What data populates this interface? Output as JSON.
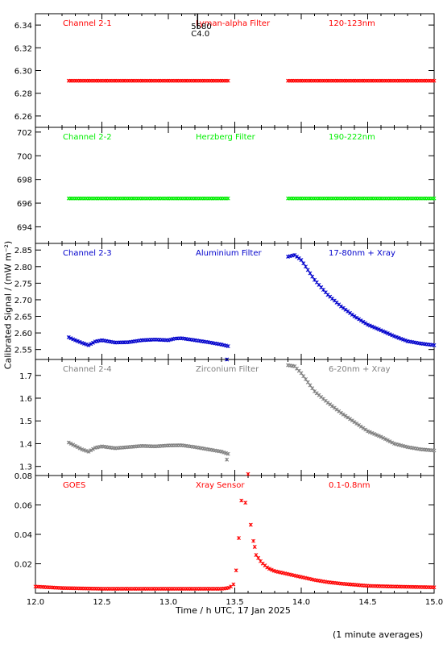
{
  "figure": {
    "x_axis_label": "Time / h UTC, 17 Jan 2025",
    "y_axis_label": "Calibrated Signal / (mW m⁻²)",
    "footnote": "(1 minute averages)",
    "event_marker": {
      "x": 13.22,
      "label_top": "5580",
      "label_bottom": "C4.0"
    }
  },
  "chart_data": [
    {
      "type": "scatter",
      "panel_id": "ch2-1",
      "color": "#ff0000",
      "labels": [
        "Channel 2-1",
        "Lyman-alpha Filter",
        "120-123nm"
      ],
      "ylim": [
        6.25,
        6.35
      ],
      "yticks": [
        6.26,
        6.28,
        6.3,
        6.32,
        6.34
      ],
      "ytick_labels": [
        "6.26",
        "6.28",
        "6.30",
        "6.32",
        "6.34"
      ],
      "segments": [
        {
          "x": [
            12.25,
            13.45
          ],
          "y": [
            6.291,
            6.291
          ]
        },
        {
          "x": [
            13.9,
            15.0
          ],
          "y": [
            6.291,
            6.291
          ]
        }
      ]
    },
    {
      "type": "scatter",
      "panel_id": "ch2-2",
      "color": "#00ee00",
      "labels": [
        "Channel 2-2",
        "Herzberg Filter",
        "190-222nm"
      ],
      "ylim": [
        692.6,
        702.4
      ],
      "yticks": [
        694,
        696,
        698,
        700,
        702
      ],
      "ytick_labels": [
        "694",
        "696",
        "698",
        "700",
        "702"
      ],
      "segments": [
        {
          "x": [
            12.25,
            13.45
          ],
          "y": [
            696.4,
            696.4
          ]
        },
        {
          "x": [
            13.9,
            15.0
          ],
          "y": [
            696.4,
            696.4
          ]
        }
      ]
    },
    {
      "type": "scatter",
      "panel_id": "ch2-3",
      "color": "#0000cc",
      "labels": [
        "Channel 2-3",
        "Aluminium Filter",
        "17-80nm + Xray"
      ],
      "ylim": [
        2.52,
        2.87
      ],
      "yticks": [
        2.55,
        2.6,
        2.65,
        2.7,
        2.75,
        2.8,
        2.85
      ],
      "ytick_labels": [
        "2.55",
        "2.60",
        "2.65",
        "2.70",
        "2.75",
        "2.80",
        "2.85"
      ],
      "segments": [
        {
          "x": [
            12.25,
            12.3,
            12.35,
            12.4,
            12.45,
            12.5,
            12.6,
            12.7,
            12.8,
            12.9,
            13.0,
            13.05,
            13.1,
            13.2,
            13.3,
            13.4,
            13.45
          ],
          "y": [
            2.587,
            2.578,
            2.57,
            2.563,
            2.574,
            2.578,
            2.571,
            2.572,
            2.578,
            2.58,
            2.578,
            2.583,
            2.584,
            2.578,
            2.572,
            2.565,
            2.56
          ]
        },
        {
          "x": [
            13.9,
            13.95,
            14.0,
            14.05,
            14.1,
            14.2,
            14.3,
            14.4,
            14.5,
            14.6,
            14.7,
            14.8,
            14.9,
            15.0
          ],
          "y": [
            2.83,
            2.835,
            2.82,
            2.79,
            2.76,
            2.715,
            2.68,
            2.65,
            2.625,
            2.608,
            2.59,
            2.575,
            2.568,
            2.563
          ]
        }
      ],
      "points": [
        {
          "x": 13.44,
          "y": 2.52
        }
      ]
    },
    {
      "type": "scatter",
      "panel_id": "ch2-4",
      "color": "#808080",
      "labels": [
        "Channel 2-4",
        "Zirconium Filter",
        "6-20nm + Xray"
      ],
      "ylim": [
        1.26,
        1.77
      ],
      "yticks": [
        1.3,
        1.4,
        1.5,
        1.6,
        1.7
      ],
      "ytick_labels": [
        "1.3",
        "1.4",
        "1.5",
        "1.6",
        "1.7"
      ],
      "segments": [
        {
          "x": [
            12.25,
            12.3,
            12.35,
            12.4,
            12.45,
            12.5,
            12.6,
            12.7,
            12.8,
            12.9,
            13.0,
            13.1,
            13.2,
            13.3,
            13.4,
            13.45
          ],
          "y": [
            1.405,
            1.39,
            1.375,
            1.365,
            1.382,
            1.388,
            1.38,
            1.385,
            1.39,
            1.388,
            1.392,
            1.393,
            1.385,
            1.375,
            1.365,
            1.355
          ]
        },
        {
          "x": [
            13.9,
            13.95,
            14.0,
            14.05,
            14.1,
            14.2,
            14.3,
            14.4,
            14.5,
            14.6,
            14.7,
            14.8,
            14.9,
            15.0
          ],
          "y": [
            1.745,
            1.74,
            1.71,
            1.67,
            1.63,
            1.58,
            1.535,
            1.495,
            1.455,
            1.43,
            1.4,
            1.385,
            1.375,
            1.37
          ]
        }
      ],
      "points": [
        {
          "x": 13.44,
          "y": 1.33
        }
      ]
    },
    {
      "type": "scatter",
      "panel_id": "goes",
      "color": "#ff0000",
      "labels": [
        "GOES",
        "Xray Sensor",
        "0.1-0.8nm"
      ],
      "ylim": [
        0.0,
        0.08
      ],
      "yticks": [
        0.02,
        0.04,
        0.06,
        0.08
      ],
      "ytick_labels": [
        "0.02",
        "0.04",
        "0.06",
        "0.08"
      ],
      "segments": [
        {
          "x": [
            12.0,
            12.2,
            12.5,
            12.8,
            13.0,
            13.2,
            13.4,
            13.45,
            13.47
          ],
          "y": [
            0.0045,
            0.0035,
            0.003,
            0.003,
            0.003,
            0.003,
            0.003,
            0.0035,
            0.0045
          ]
        },
        {
          "x": [
            13.66,
            13.7,
            13.75,
            13.8,
            13.85,
            13.9,
            14.0,
            14.1,
            14.2,
            14.3,
            14.5,
            14.7,
            15.0
          ],
          "y": [
            0.026,
            0.021,
            0.017,
            0.015,
            0.014,
            0.013,
            0.011,
            0.009,
            0.0075,
            0.0065,
            0.005,
            0.0045,
            0.004
          ]
        }
      ],
      "points": [
        {
          "x": 13.49,
          "y": 0.006
        },
        {
          "x": 13.51,
          "y": 0.0155
        },
        {
          "x": 13.53,
          "y": 0.0375
        },
        {
          "x": 13.55,
          "y": 0.063
        },
        {
          "x": 13.58,
          "y": 0.0615
        },
        {
          "x": 13.6,
          "y": 0.081
        },
        {
          "x": 13.62,
          "y": 0.0465
        },
        {
          "x": 13.64,
          "y": 0.0355
        },
        {
          "x": 13.65,
          "y": 0.0315
        }
      ]
    }
  ],
  "x_axis": {
    "xlim": [
      12.0,
      15.0
    ],
    "ticks": [
      12.0,
      12.5,
      13.0,
      13.5,
      14.0,
      14.5,
      15.0
    ],
    "tick_labels": [
      "12.0",
      "12.5",
      "13.0",
      "13.5",
      "14.0",
      "14.5",
      "15.0"
    ]
  }
}
